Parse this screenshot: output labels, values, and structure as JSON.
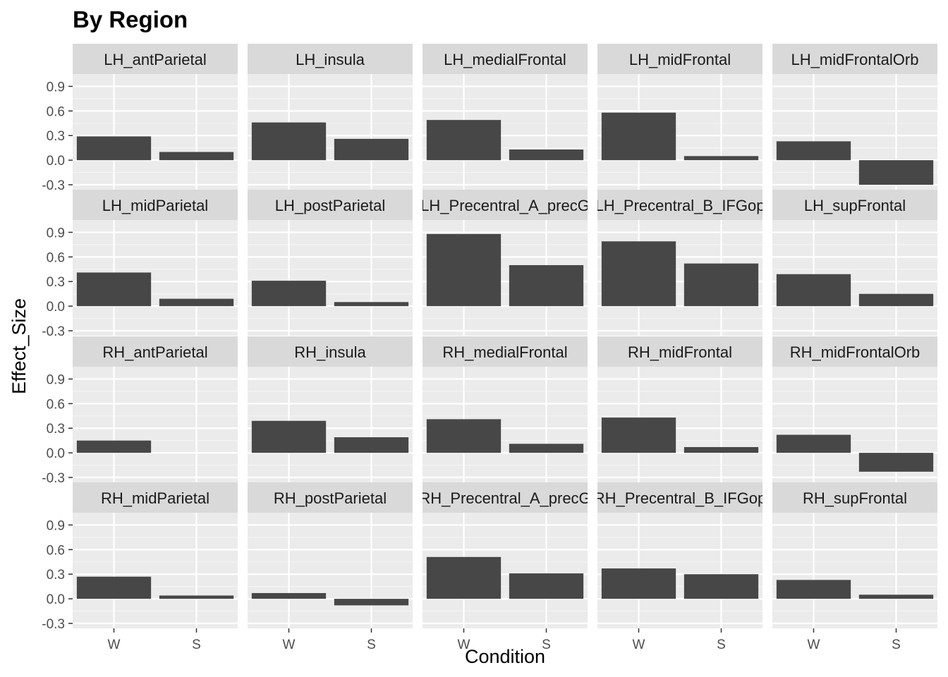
{
  "chart_data": {
    "type": "bar",
    "title": "By Region",
    "xlabel": "Condition",
    "ylabel": "Effect_Size",
    "categories": [
      "W",
      "S"
    ],
    "ylim": [
      -0.36,
      1.05
    ],
    "yticks": [
      -0.3,
      0.0,
      0.3,
      0.6,
      0.9
    ],
    "ytick_labels": [
      "-0.3",
      "0.0",
      "0.3",
      "0.6",
      "0.9"
    ],
    "grid": true,
    "facet_layout": {
      "rows": 4,
      "cols": 5
    },
    "panels": [
      {
        "label": "LH_antParietal",
        "values": [
          0.29,
          0.1
        ]
      },
      {
        "label": "LH_insula",
        "values": [
          0.46,
          0.26
        ]
      },
      {
        "label": "LH_medialFrontal",
        "values": [
          0.49,
          0.13
        ]
      },
      {
        "label": "LH_midFrontal",
        "values": [
          0.58,
          0.05
        ]
      },
      {
        "label": "LH_midFrontalOrb",
        "values": [
          0.23,
          -0.3
        ]
      },
      {
        "label": "LH_midParietal",
        "values": [
          0.41,
          0.09
        ]
      },
      {
        "label": "LH_postParietal",
        "values": [
          0.31,
          0.05
        ]
      },
      {
        "label": "LH_Precentral_A_precG",
        "values": [
          0.88,
          0.5
        ]
      },
      {
        "label": "LH_Precentral_B_IFGop",
        "values": [
          0.79,
          0.52
        ]
      },
      {
        "label": "LH_supFrontal",
        "values": [
          0.39,
          0.15
        ]
      },
      {
        "label": "RH_antParietal",
        "values": [
          0.15,
          0.0
        ]
      },
      {
        "label": "RH_insula",
        "values": [
          0.39,
          0.19
        ]
      },
      {
        "label": "RH_medialFrontal",
        "values": [
          0.41,
          0.11
        ]
      },
      {
        "label": "RH_midFrontal",
        "values": [
          0.43,
          0.07
        ]
      },
      {
        "label": "RH_midFrontalOrb",
        "values": [
          0.22,
          -0.23
        ]
      },
      {
        "label": "RH_midParietal",
        "values": [
          0.27,
          0.04
        ]
      },
      {
        "label": "RH_postParietal",
        "values": [
          0.07,
          -0.08
        ]
      },
      {
        "label": "RH_Precentral_A_precG",
        "values": [
          0.51,
          0.31
        ]
      },
      {
        "label": "RH_Precentral_B_IFGop",
        "values": [
          0.37,
          0.3
        ]
      },
      {
        "label": "RH_supFrontal",
        "values": [
          0.23,
          0.05
        ]
      }
    ],
    "colors": {
      "bar": "#474747",
      "panel_bg": "#ebebeb",
      "strip_bg": "#d9d9d9",
      "grid_major": "#ffffff",
      "grid_minor": "#f5f5f5",
      "tick": "#333333"
    }
  }
}
